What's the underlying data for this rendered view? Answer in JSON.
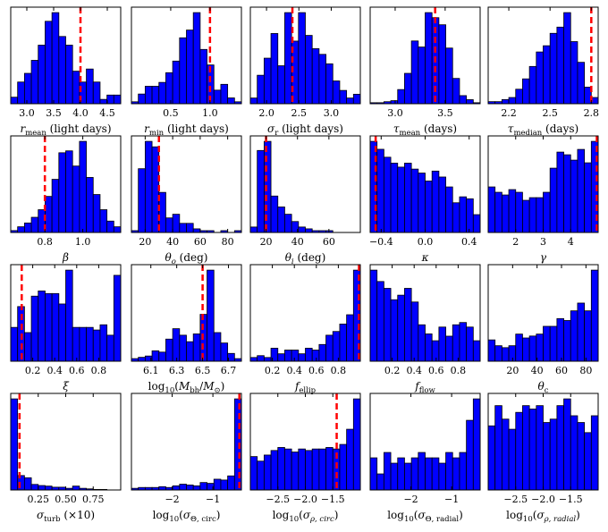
{
  "chart_data": [
    {
      "type": "bar",
      "name": "r-mean",
      "xlabel": "r_mean (light days)",
      "x_range": [
        2.7,
        4.75
      ],
      "ticks": [
        3.0,
        3.5,
        4.0,
        4.5
      ],
      "tick_labels": [
        "3.0",
        "3.5",
        "4.0",
        "4.5"
      ],
      "truth": 4.0,
      "counts": [
        3,
        10,
        14,
        20,
        27,
        38,
        42,
        31,
        27,
        15,
        10,
        16,
        10,
        2,
        4,
        4
      ]
    },
    {
      "type": "bar",
      "name": "r-min",
      "xlabel": "r_min (light days)",
      "x_range": [
        0.0,
        1.4
      ],
      "ticks": [
        0.5,
        1.0
      ],
      "tick_labels": [
        "0.5",
        "1.0"
      ],
      "truth": 1.0,
      "counts": [
        1,
        5,
        9,
        9,
        11,
        16,
        22,
        34,
        38,
        47,
        28,
        20,
        7,
        10,
        3,
        1
      ]
    },
    {
      "type": "bar",
      "name": "sigma-r",
      "xlabel": "σ_r (light days)",
      "x_range": [
        1.75,
        3.45
      ],
      "ticks": [
        2.0,
        2.5,
        3.0
      ],
      "tick_labels": [
        "2.0",
        "2.5",
        "3.0"
      ],
      "truth": 2.4,
      "counts": [
        3,
        15,
        24,
        37,
        20,
        48,
        33,
        48,
        36,
        29,
        26,
        21,
        12,
        7,
        3,
        5
      ]
    },
    {
      "type": "bar",
      "name": "tau-mean",
      "xlabel": "τ_mean (days)",
      "x_range": [
        2.75,
        3.85
      ],
      "ticks": [
        3.0,
        3.5
      ],
      "tick_labels": [
        "3.0",
        "3.5"
      ],
      "truth": 3.4,
      "counts": [
        1,
        1,
        2,
        3,
        14,
        30,
        62,
        56,
        90,
        85,
        78,
        55,
        25,
        8,
        4,
        1
      ]
    },
    {
      "type": "bar",
      "name": "tau-median",
      "xlabel": "τ_median (days)",
      "x_range": [
        2.05,
        2.85
      ],
      "ticks": [
        2.2,
        2.5,
        2.8
      ],
      "tick_labels": [
        "2.2",
        "2.5",
        "2.8"
      ],
      "truth": 2.8,
      "counts": [
        1,
        1,
        2,
        3,
        7,
        12,
        18,
        25,
        28,
        34,
        37,
        44,
        30,
        20,
        8,
        3
      ]
    },
    {
      "type": "bar",
      "name": "beta",
      "xlabel": "β",
      "x_range": [
        0.62,
        1.2
      ],
      "ticks": [
        0.8,
        1.0
      ],
      "tick_labels": [
        "0.8",
        "1.0"
      ],
      "truth": 0.8,
      "counts": [
        1,
        3,
        5,
        8,
        12,
        19,
        28,
        42,
        43,
        35,
        48,
        29,
        20,
        12,
        6,
        3
      ]
    },
    {
      "type": "bar",
      "name": "theta-o",
      "xlabel": "θ_o (deg)",
      "x_range": [
        10,
        90
      ],
      "ticks": [
        20,
        40,
        60,
        80
      ],
      "tick_labels": [
        "20",
        "40",
        "60",
        "80"
      ],
      "truth": 30,
      "counts": [
        1,
        35,
        50,
        47,
        22,
        8,
        10,
        5,
        5,
        2,
        1,
        1,
        0,
        1,
        0,
        1
      ]
    },
    {
      "type": "bar",
      "name": "theta-i",
      "xlabel": "θ_i (deg)",
      "x_range": [
        10,
        80
      ],
      "ticks": [
        20,
        40,
        60
      ],
      "tick_labels": [
        "20",
        "40",
        "60"
      ],
      "truth": 20,
      "counts": [
        3,
        45,
        50,
        20,
        14,
        10,
        6,
        3,
        2,
        1,
        1,
        1,
        0,
        0,
        0,
        0
      ]
    },
    {
      "type": "bar",
      "name": "kappa",
      "xlabel": "κ",
      "x_range": [
        -0.5,
        0.5
      ],
      "ticks": [
        -0.4,
        0.0,
        0.4
      ],
      "tick_labels": [
        "−0.4",
        "0.0",
        "0.4"
      ],
      "truth": -0.45,
      "counts": [
        46,
        42,
        38,
        35,
        33,
        35,
        32,
        30,
        26,
        31,
        28,
        23,
        15,
        18,
        17,
        9
      ]
    },
    {
      "type": "bar",
      "name": "gamma",
      "xlabel": "γ",
      "x_range": [
        1.0,
        5.0
      ],
      "ticks": [
        2,
        3,
        4
      ],
      "tick_labels": [
        "2",
        "3",
        "4"
      ],
      "truth": 5.0,
      "counts": [
        17,
        15,
        14,
        16,
        15,
        12,
        13,
        13,
        15,
        24,
        30,
        29,
        27,
        31,
        26,
        34
      ]
    },
    {
      "type": "bar",
      "name": "xi",
      "xlabel": "ξ",
      "x_range": [
        0.0,
        1.0
      ],
      "ticks": [
        0.2,
        0.4,
        0.6,
        0.8
      ],
      "tick_labels": [
        "0.2",
        "0.4",
        "0.6",
        "0.8"
      ],
      "truth": 0.1,
      "counts": [
        13,
        21,
        11,
        25,
        27,
        26,
        26,
        22,
        35,
        13,
        13,
        13,
        12,
        14,
        10,
        33
      ]
    },
    {
      "type": "bar",
      "name": "log-mbh",
      "xlabel": "log10(M_bh/M_sun)",
      "x_range": [
        5.95,
        6.8
      ],
      "ticks": [
        6.1,
        6.3,
        6.5,
        6.7
      ],
      "tick_labels": [
        "6.1",
        "6.3",
        "6.5",
        "6.7"
      ],
      "truth": 6.5,
      "counts": [
        2,
        3,
        4,
        8,
        7,
        17,
        25,
        20,
        15,
        21,
        36,
        70,
        22,
        14,
        6,
        2
      ]
    },
    {
      "type": "bar",
      "name": "f-ellip",
      "xlabel": "f_ellip",
      "x_range": [
        0.0,
        1.0
      ],
      "ticks": [
        0.2,
        0.4,
        0.6,
        0.8
      ],
      "tick_labels": [
        "0.2",
        "0.4",
        "0.6",
        "0.8"
      ],
      "truth": 1.0,
      "counts": [
        2,
        3,
        2,
        7,
        4,
        6,
        6,
        4,
        7,
        6,
        9,
        14,
        16,
        20,
        25,
        49
      ]
    },
    {
      "type": "bar",
      "name": "f-flow",
      "xlabel": "f_flow",
      "x_range": [
        0.0,
        1.0
      ],
      "ticks": [
        0.2,
        0.4,
        0.6,
        0.8
      ],
      "tick_labels": [
        "0.2",
        "0.4",
        "0.6",
        "0.8"
      ],
      "truth": null,
      "counts": [
        40,
        35,
        32,
        27,
        29,
        32,
        26,
        16,
        12,
        9,
        15,
        11,
        16,
        17,
        15,
        9
      ]
    },
    {
      "type": "bar",
      "name": "theta-c",
      "xlabel": "θ_c",
      "x_range": [
        0,
        90
      ],
      "ticks": [
        20,
        40,
        60,
        80
      ],
      "tick_labels": [
        "20",
        "40",
        "60",
        "80"
      ],
      "truth": null,
      "counts": [
        11,
        8,
        7,
        8,
        14,
        12,
        13,
        14,
        18,
        18,
        22,
        21,
        26,
        30,
        26,
        47
      ]
    },
    {
      "type": "bar",
      "name": "sigma-turb",
      "xlabel": "σ_turb (×10)",
      "x_range": [
        0.0,
        1.0
      ],
      "ticks": [
        0.25,
        0.5,
        0.75
      ],
      "tick_labels": [
        "0.25",
        "0.50",
        "0.75"
      ],
      "truth": 0.08,
      "counts": [
        164,
        26,
        22,
        10,
        8,
        7,
        5,
        5,
        3,
        7,
        3,
        2,
        1,
        1,
        0,
        0
      ]
    },
    {
      "type": "bar",
      "name": "log-sigma-theta-circ",
      "xlabel": "log10(σ_Θ,circ)",
      "x_range": [
        -3.0,
        -0.3
      ],
      "ticks": [
        -2,
        -1
      ],
      "tick_labels": [
        "−2",
        "−1"
      ],
      "truth": -0.35,
      "counts": [
        2,
        3,
        3,
        3,
        4,
        3,
        5,
        7,
        6,
        5,
        9,
        8,
        13,
        12,
        17,
        110
      ]
    },
    {
      "type": "bar",
      "name": "log-sigma-rho-circ",
      "xlabel": "log10(σ_ρ,circ)",
      "x_range": [
        -3.0,
        -1.0
      ],
      "ticks": [
        -2.5,
        -2.0,
        -1.5
      ],
      "tick_labels": [
        "−2.5",
        "−2.0",
        "−1.5"
      ],
      "truth": -1.43,
      "counts": [
        22,
        19,
        23,
        26,
        28,
        27,
        25,
        27,
        26,
        27,
        27,
        28,
        27,
        30,
        40,
        60
      ]
    },
    {
      "type": "bar",
      "name": "log-sigma-theta-radial",
      "xlabel": "log10(σ_Θ,radial)",
      "x_range": [
        -3.0,
        -0.3
      ],
      "ticks": [
        -2,
        -1
      ],
      "tick_labels": [
        "−2",
        "−1"
      ],
      "truth": null,
      "counts": [
        6,
        3,
        7,
        5,
        6,
        5,
        6,
        7,
        6,
        6,
        5,
        7,
        6,
        7,
        13,
        17
      ]
    },
    {
      "type": "bar",
      "name": "log-sigma-rho-radial",
      "xlabel": "log10(σ_ρ,radial)",
      "x_range": [
        -3.0,
        -1.0
      ],
      "ticks": [
        -2.5,
        -2.0,
        -1.5
      ],
      "tick_labels": [
        "−2.5",
        "−2.0",
        "−1.5"
      ],
      "truth": null,
      "counts": [
        19,
        25,
        21,
        18,
        23,
        25,
        24,
        25,
        20,
        21,
        25,
        27,
        22,
        20,
        17,
        22
      ]
    }
  ],
  "style": {
    "bar_color": "#0000ff",
    "edge_color": "#000000",
    "truth_color": "#ff0000"
  }
}
